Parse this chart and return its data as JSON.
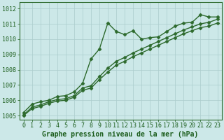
{
  "xlabel": "Graphe pression niveau de la mer (hPa)",
  "x": [
    0,
    1,
    2,
    3,
    4,
    5,
    6,
    7,
    8,
    9,
    10,
    11,
    12,
    13,
    14,
    15,
    16,
    17,
    18,
    19,
    20,
    21,
    22,
    23
  ],
  "line1": [
    1005.2,
    1005.75,
    1005.9,
    1006.0,
    1006.25,
    1006.3,
    1006.55,
    1007.1,
    1008.7,
    1009.35,
    1011.05,
    1010.5,
    1010.3,
    1010.55,
    1010.0,
    1010.1,
    1010.15,
    1010.5,
    1010.85,
    1011.05,
    1011.1,
    1011.6,
    1011.45,
    1011.45
  ],
  "line2": [
    1005.05,
    1005.55,
    1005.7,
    1005.9,
    1006.05,
    1006.1,
    1006.3,
    1006.8,
    1006.95,
    1007.55,
    1008.1,
    1008.55,
    1008.8,
    1009.1,
    1009.35,
    1009.6,
    1009.85,
    1010.1,
    1010.35,
    1010.6,
    1010.8,
    1011.0,
    1011.1,
    1011.3
  ],
  "line3": [
    1005.0,
    1005.45,
    1005.6,
    1005.8,
    1005.95,
    1006.0,
    1006.2,
    1006.65,
    1006.8,
    1007.35,
    1007.85,
    1008.3,
    1008.55,
    1008.85,
    1009.1,
    1009.35,
    1009.6,
    1009.85,
    1010.1,
    1010.35,
    1010.55,
    1010.75,
    1010.85,
    1011.05
  ],
  "line_color": "#2d6a2d",
  "marker": "D",
  "markersize": 2.5,
  "bg_color": "#cce8e8",
  "grid_color": "#aacccc",
  "text_color": "#1a5c1a",
  "ylim": [
    1004.75,
    1012.4
  ],
  "yticks": [
    1005,
    1006,
    1007,
    1008,
    1009,
    1010,
    1011,
    1012
  ],
  "xticks": [
    0,
    1,
    2,
    3,
    4,
    5,
    6,
    7,
    8,
    9,
    10,
    11,
    12,
    13,
    14,
    15,
    16,
    17,
    18,
    19,
    20,
    21,
    22,
    23
  ],
  "xlabel_fontsize": 7.0,
  "tick_fontsize": 6.0,
  "linewidth": 1.0
}
